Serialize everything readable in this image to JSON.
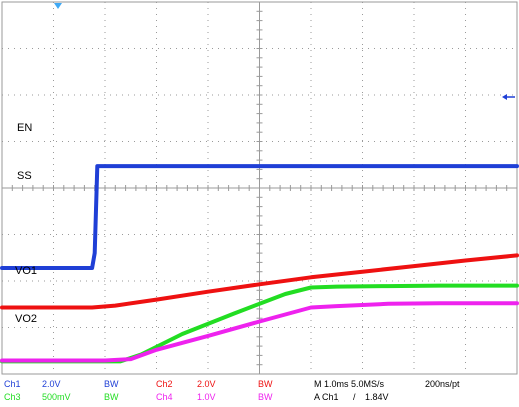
{
  "chart_data": {
    "type": "line",
    "grid": true,
    "time_per_div": "1.0ms",
    "series": [
      {
        "name": "EN",
        "channel": "Ch1",
        "color": "#1f3fd6",
        "v_per_div": "2.0V",
        "x": [
          0,
          1.75,
          1.8,
          1.85,
          10
        ],
        "y": [
          2.28,
          2.28,
          2.6,
          4.47,
          4.47
        ]
      },
      {
        "name": "SS",
        "channel": "Ch2",
        "color": "#ee1111",
        "v_per_div": "2.0V",
        "x": [
          0,
          1.75,
          2.2,
          3.0,
          4.0,
          5.0,
          6.0,
          7.0,
          8.0,
          9.0,
          10
        ],
        "y": [
          1.43,
          1.43,
          1.47,
          1.6,
          1.77,
          1.93,
          2.08,
          2.2,
          2.32,
          2.44,
          2.55
        ]
      },
      {
        "name": "VO1",
        "channel": "Ch3",
        "color": "#22dd22",
        "v_per_div": "500mV",
        "x": [
          0,
          2.3,
          2.7,
          3.5,
          4.5,
          5.5,
          6.0,
          6.5,
          7.5,
          8.5,
          10
        ],
        "y": [
          0.27,
          0.27,
          0.42,
          0.86,
          1.3,
          1.72,
          1.86,
          1.88,
          1.89,
          1.9,
          1.9
        ]
      },
      {
        "name": "VO2",
        "channel": "Ch4",
        "color": "#ee22ee",
        "v_per_div": "1.0V",
        "x": [
          0,
          2.0,
          2.5,
          3.0,
          4.0,
          5.0,
          6.0,
          6.5,
          7.5,
          8.5,
          10
        ],
        "y": [
          0.29,
          0.29,
          0.32,
          0.52,
          0.82,
          1.13,
          1.43,
          1.46,
          1.51,
          1.52,
          1.52
        ]
      }
    ],
    "xlim": [
      0,
      10
    ],
    "ylim": [
      0,
      8
    ]
  },
  "trace_labels": {
    "en": "EN",
    "ss": "SS",
    "vo1": "VO1",
    "vo2": "VO2"
  },
  "status": {
    "ch1_label": "Ch1",
    "ch1_scale": "2.0V",
    "ch2_label": "Ch2",
    "ch2_scale": "2.0V",
    "ch3_label": "Ch3",
    "ch3_scale": "500mV",
    "ch4_label": "Ch4",
    "ch4_scale": "1.0V",
    "bw_a": "BW",
    "bw_b": "BW",
    "bw_c": "BW",
    "bw_d": "BW",
    "timebase": "M 1.0ms 5.0MS/s",
    "resolution": "200ns/pt",
    "trigger_source": "A  Ch1",
    "trigger_slope": "/",
    "trigger_level": "1.84V"
  },
  "colors": {
    "ch1": "#1f3fd6",
    "ch2": "#ee1111",
    "ch3": "#22dd22",
    "ch4": "#ee22ee",
    "grid": "#9a9a9a",
    "trigger_marker": "#3fa9f5"
  }
}
